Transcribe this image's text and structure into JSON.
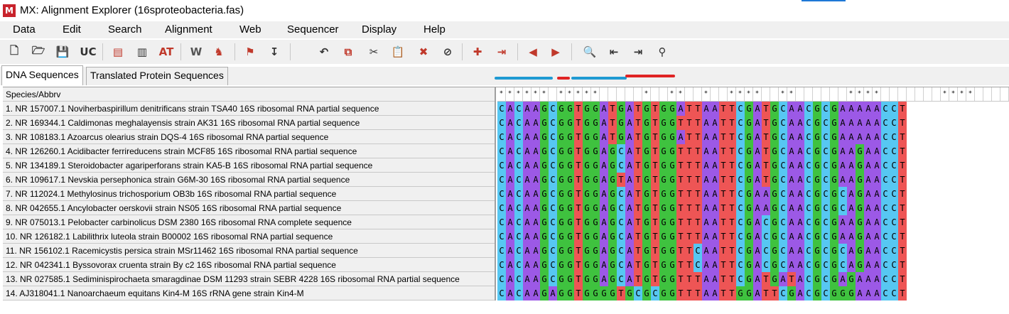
{
  "window": {
    "app_icon": "M",
    "title": "MX: Alignment Explorer (16sproteobacteria.fas)"
  },
  "menu": [
    "Data",
    "Edit",
    "Search",
    "Alignment",
    "Web",
    "Sequencer",
    "Display",
    "Help"
  ],
  "toolbar": {
    "icons": [
      {
        "name": "new-file-icon",
        "glyph": "🗋",
        "color": "#333333"
      },
      {
        "name": "open-folder-icon",
        "glyph": "🗁",
        "color": "#333333"
      },
      {
        "name": "save-icon",
        "glyph": "💾",
        "color": "#333333"
      },
      {
        "name": "uppercase-icon",
        "glyph": "UC",
        "color": "#333333"
      },
      {
        "name": "sequence-data-icon",
        "glyph": "▤",
        "color": "#c0392b"
      },
      {
        "name": "blocks-icon",
        "glyph": "▥",
        "color": "#333333"
      },
      {
        "name": "atcg-icon",
        "glyph": "AT",
        "color": "#c0392b"
      },
      {
        "name": "clustalw-icon",
        "glyph": "W",
        "color": "#555555"
      },
      {
        "name": "muscle-icon",
        "glyph": "♞",
        "color": "#c0392b"
      },
      {
        "name": "mark-site-icon",
        "glyph": "⚑",
        "color": "#c0392b"
      },
      {
        "name": "mark-column-icon",
        "glyph": "↧",
        "color": "#333333"
      },
      {
        "name": "undo-icon",
        "glyph": "↶",
        "color": "#333333"
      },
      {
        "name": "copy-icon",
        "glyph": "⧉",
        "color": "#c0392b"
      },
      {
        "name": "cut-icon",
        "glyph": "✂",
        "color": "#333333"
      },
      {
        "name": "paste-icon",
        "glyph": "📋",
        "color": "#333333"
      },
      {
        "name": "delete-icon",
        "glyph": "✖",
        "color": "#c0392b"
      },
      {
        "name": "delete-gap-icon",
        "glyph": "⊘",
        "color": "#333333"
      },
      {
        "name": "add-sequence-icon",
        "glyph": "✚",
        "color": "#c0392b"
      },
      {
        "name": "insert-icon",
        "glyph": "⇥",
        "color": "#c0392b"
      },
      {
        "name": "move-left-icon",
        "glyph": "◀",
        "color": "#c0392b"
      },
      {
        "name": "move-right-icon",
        "glyph": "▶",
        "color": "#c0392b"
      },
      {
        "name": "search-icon",
        "glyph": "🔍",
        "color": "#333333"
      },
      {
        "name": "find-previous-icon",
        "glyph": "⇤",
        "color": "#333333"
      },
      {
        "name": "find-next-icon",
        "glyph": "⇥",
        "color": "#333333"
      },
      {
        "name": "find-marked-icon",
        "glyph": "⚲",
        "color": "#333333"
      }
    ]
  },
  "tabs": [
    {
      "label": "DNA Sequences",
      "active": true
    },
    {
      "label": "Translated Protein Sequences",
      "active": false
    }
  ],
  "annotation_colors": {
    "blue": "#1f9ad2",
    "red": "#e02424"
  },
  "grid": {
    "header": "Species/Abbrv",
    "consensus": "************ ** ** ** ******* ** *** *****  ** * * ** ******",
    "consensus_cells": "******.*****.....*..**..*..****..**......****.......****",
    "rows": [
      {
        "name": "1. NR 157007.1 Noviherbaspirillum denitrificans strain TSA40 16S ribosomal RNA partial sequence",
        "seq": "CACAAGCGGTGGATGATGTGGATTAATTCGATGCAACGCGAAAAACCT"
      },
      {
        "name": "2. NR 169344.1 Caldimonas meghalayensis strain AK31 16S ribosomal RNA partial sequence",
        "seq": "CACAAGCGGTGGATGATGTGGTTTAATTCGATGCAACGCGAAAAACCT"
      },
      {
        "name": "3. NR 108183.1 Azoarcus olearius strain DQS-4 16S ribosomal RNA partial sequence",
        "seq": "CACAAGCGGTGGATGATGTGGATTAATTCGATGCAACGCGAAAAACCT"
      },
      {
        "name": "4. NR 126260.1 Acidibacter ferrireducens strain MCF85 16S ribosomal RNA partial sequence",
        "seq": "CACAAGCGGTGGAGCATGTGGTTTAATTCGATGCAACGCGAAGAACCT"
      },
      {
        "name": "5. NR 134189.1 Steroidobacter agariperforans strain KA5-B 16S ribosomal RNA partial sequence",
        "seq": "CACAAGCGGTGGAGCATGTGGTTTAATTCGATGCAACGCGAAGAACCT"
      },
      {
        "name": "6. NR 109617.1 Nevskia persephonica strain G6M-30 16S ribosomal RNA partial sequence",
        "seq": "CACAAGCGGTGGAGTATGTGGTTTAATTCGATGCAACGCGAAGAACCT"
      },
      {
        "name": "7. NR 112024.1 Methylosinus trichosporium OB3b 16S ribosomal RNA partial sequence",
        "seq": "CACAAGCGGTGGAGCATGTGGTTTAATTCGAAGCAACGCGCAGAACCT"
      },
      {
        "name": "8. NR 042655.1 Ancylobacter oerskovii strain NS05 16S ribosomal RNA partial sequence",
        "seq": "CACAAGCGGTGGAGCATGTGGTTTAATTCGAAGCAACGCGCAGAACCT"
      },
      {
        "name": "9. NR 075013.1 Pelobacter carbinolicus DSM 2380 16S ribosomal RNA complete sequence",
        "seq": "CACAAGCGGTGGAGCATGTGGTTTAATTCGACGCAACGCGAAGAACCT"
      },
      {
        "name": "10. NR 126182.1 Labilithrix luteola strain B00002 16S ribosomal RNA partial sequence",
        "seq": "CACAAGCGGTGGAGCATGTGGTTTAATTCGACGCAACGCGAAGAACCT"
      },
      {
        "name": "11. NR 156102.1 Racemicystis persica strain MSr11462 16S ribosomal RNA partial sequence",
        "seq": "CACAAGCGGTGGAGCATGTGGTTCAATTCGACGCAACGCGCAGAACCT"
      },
      {
        "name": "12. NR 042341.1 Byssovorax cruenta strain By c2 16S ribosomal RNA partial sequence",
        "seq": "CACAAGCGGTGGAGCATGTGGTTCAATTCGACGCAACGCGCAGAACCT"
      },
      {
        "name": "13. NR 027585.1 Sediminispirochaeta smaragdinae DSM 11293 strain SEBR 4228 16S ribosomal RNA partial sequence",
        "seq": "CACAAGCGGTGGAGCATGTGGTTTAATTCGATGATACGCGAGAAACCT"
      },
      {
        "name": "14. AJ318041.1 Nanoarchaeum equitans Kin4-M 16S rRNA gene strain Kin4-M",
        "seq": "CACAAGAGGTGGGGTGCGCGGTTTAATTGGATTCGACGCGGGAAACCT"
      }
    ]
  }
}
